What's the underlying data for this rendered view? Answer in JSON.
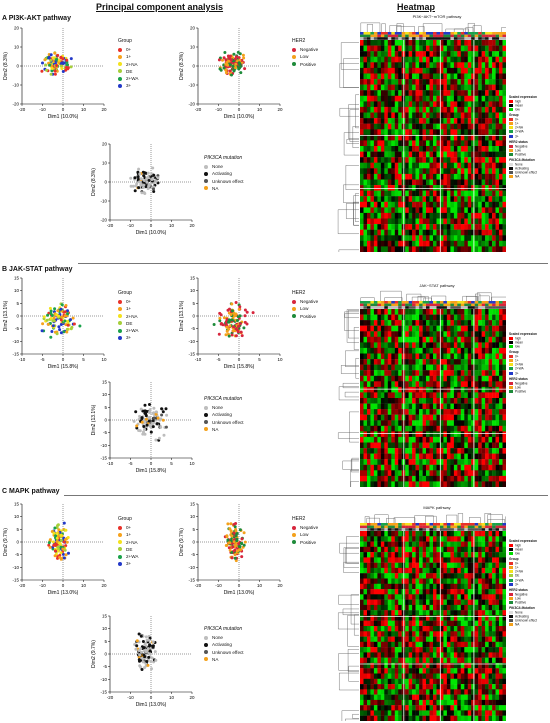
{
  "headers": {
    "pca": "Principal component analysis",
    "heatmap": "Heatmap"
  },
  "colors": {
    "g0": "#e8312a",
    "g1": "#f7a21b",
    "g2na": "#f4e21c",
    "de": "#a6cf3a",
    "g2wa": "#1aa24a",
    "g3": "#2339c8",
    "neg": "#d7263d",
    "low": "#f4a11b",
    "pos": "#1e8b3a",
    "none": "#bdbdbd",
    "act": "#111111",
    "unk": "#555555",
    "na": "#f4a11b"
  },
  "sections": [
    {
      "label": "A PI3K-AKT pathway",
      "heatmap_title": "PI3K−AKT−mTOR pathway",
      "plots": [
        {
          "id": "a-group",
          "xlabel": "Dim1 (10.0%)",
          "ylabel": "Dim2 (8.3%)",
          "xticks": [
            "-20",
            "-10",
            "0",
            "10",
            "20"
          ],
          "yticks": [
            "20",
            "10",
            "0",
            "-10",
            "-20"
          ],
          "legend_title": "Group",
          "legend": [
            "0+",
            "1+",
            "2+NA",
            "DE",
            "2+WA",
            "3+"
          ]
        },
        {
          "id": "a-her2",
          "xlabel": "Dim1 (10.0%)",
          "ylabel": "Dim2 (8.3%)",
          "xticks": [
            "-20",
            "-10",
            "0",
            "10",
            "20"
          ],
          "yticks": [
            "20",
            "10",
            "0",
            "-10",
            "-20"
          ],
          "legend_title": "HER2",
          "legend": [
            "Negative",
            "Low",
            "Positive"
          ]
        },
        {
          "id": "a-pik",
          "xlabel": "Dim1 (10.0%)",
          "ylabel": "Dim2 (8.3%)",
          "xticks": [
            "-20",
            "-10",
            "0",
            "10",
            "20"
          ],
          "yticks": [
            "20",
            "10",
            "0",
            "-10",
            "-20"
          ],
          "legend_title": "PIK3CA mutation",
          "legend": [
            "None",
            "Activating",
            "Unknown effect",
            "NA"
          ]
        }
      ],
      "heat_legend": {
        "scaled": "Scaled expression",
        "high": "high",
        "mean": "mean",
        "low": "low",
        "group": "Group",
        "group_items": [
          "0+",
          "1+",
          "2+NA",
          "2+WA",
          "3+"
        ],
        "her2": "HER2 status",
        "her2_items": [
          "Negative",
          "Low",
          "Positive"
        ],
        "pik": "PIK3CA Mutation",
        "pik_items": [
          "None",
          "Activating",
          "Unknown effect",
          "NA"
        ]
      }
    },
    {
      "label": "B JAK-STAT pathway",
      "heatmap_title": "JAK−STAT pathway",
      "plots": [
        {
          "id": "b-group",
          "xlabel": "Dim1 (15.8%)",
          "ylabel": "Dim2 (13.1%)",
          "xticks": [
            "-10",
            "-5",
            "0",
            "5",
            "10"
          ],
          "yticks": [
            "15",
            "10",
            "5",
            "0",
            "-5",
            "-10",
            "-15"
          ],
          "legend_title": "Group",
          "legend": [
            "0+",
            "1+",
            "2+NA",
            "DE",
            "2+WA",
            "3+"
          ]
        },
        {
          "id": "b-her2",
          "xlabel": "Dim1 (15.8%)",
          "ylabel": "Dim2 (13.1%)",
          "xticks": [
            "-10",
            "-5",
            "0",
            "5",
            "10"
          ],
          "yticks": [
            "15",
            "10",
            "5",
            "0",
            "-5",
            "-10",
            "-15"
          ],
          "legend_title": "HER2",
          "legend": [
            "Negative",
            "Low",
            "Positive"
          ]
        },
        {
          "id": "b-pik",
          "xlabel": "Dim1 (15.8%)",
          "ylabel": "Dim2 (13.1%)",
          "xticks": [
            "-10",
            "-5",
            "0",
            "5",
            "10"
          ],
          "yticks": [
            "15",
            "10",
            "5",
            "0",
            "-5",
            "-10",
            "-15"
          ],
          "legend_title": "PIK3CA mutation",
          "legend": [
            "None",
            "Activating",
            "Unknown effect",
            "NA"
          ]
        }
      ],
      "heat_legend": {
        "scaled": "Scaled expression",
        "high": "high",
        "mean": "mean",
        "low": "low",
        "group": "Group",
        "group_items": [
          "0+",
          "1+",
          "2+NA",
          "2+WA",
          "3+"
        ],
        "her2": "HER2 status",
        "her2_items": [
          "Negative",
          "Low",
          "Positive"
        ],
        "pik": "",
        "pik_items": []
      }
    },
    {
      "label": "C MAPK pathway",
      "heatmap_title": "MAPK pathway",
      "plots": [
        {
          "id": "c-group",
          "xlabel": "Dim1 (13.0%)",
          "ylabel": "Dim2 (9.7%)",
          "xticks": [
            "-20",
            "-10",
            "0",
            "10",
            "20"
          ],
          "yticks": [
            "15",
            "10",
            "5",
            "0",
            "-5",
            "-10",
            "-15"
          ],
          "legend_title": "Group",
          "legend": [
            "0+",
            "1+",
            "2+NA",
            "DE",
            "2+WA",
            "3+"
          ]
        },
        {
          "id": "c-her2",
          "xlabel": "Dim1 (13.0%)",
          "ylabel": "Dim2 (9.7%)",
          "xticks": [
            "-20",
            "-10",
            "0",
            "10",
            "20"
          ],
          "yticks": [
            "15",
            "10",
            "5",
            "0",
            "-5",
            "-10",
            "-15"
          ],
          "legend_title": "HER2",
          "legend": [
            "Negative",
            "Low",
            "Positive"
          ]
        },
        {
          "id": "c-pik",
          "xlabel": "Dim1 (13.0%)",
          "ylabel": "Dim2 (9.7%)",
          "xticks": [
            "-20",
            "-10",
            "0",
            "10",
            "20"
          ],
          "yticks": [
            "15",
            "10",
            "5",
            "0",
            "-5",
            "-10",
            "-15"
          ],
          "legend_title": "PIK3CA mutation",
          "legend": [
            "None",
            "Activating",
            "Unknown effect",
            "NA"
          ]
        }
      ],
      "heat_legend": {
        "scaled": "Scaled expression",
        "high": "high",
        "mean": "mean",
        "low": "low",
        "group": "Group",
        "group_items": [
          "0+",
          "1+",
          "2+NA",
          "DE",
          "2+WA",
          "3+"
        ],
        "her2": "HER2 status",
        "her2_items": [
          "Negative",
          "Low",
          "Positive"
        ],
        "pik": "PIK3CA Mutation",
        "pik_items": [
          "None",
          "Activating",
          "Unknown effect",
          "NA"
        ]
      }
    }
  ]
}
